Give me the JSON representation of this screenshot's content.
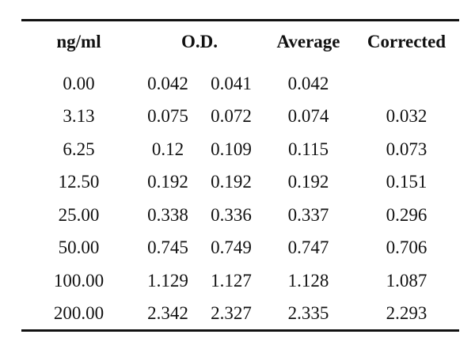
{
  "table": {
    "headers": {
      "concentration": "ng/ml",
      "od": "O.D.",
      "average": "Average",
      "corrected": "Corrected"
    },
    "rows": [
      {
        "concentration": "0.00",
        "od1": "0.042",
        "od2": "0.041",
        "average": "0.042",
        "corrected": ""
      },
      {
        "concentration": "3.13",
        "od1": "0.075",
        "od2": "0.072",
        "average": "0.074",
        "corrected": "0.032"
      },
      {
        "concentration": "6.25",
        "od1": "0.12",
        "od2": "0.109",
        "average": "0.115",
        "corrected": "0.073"
      },
      {
        "concentration": "12.50",
        "od1": "0.192",
        "od2": "0.192",
        "average": "0.192",
        "corrected": "0.151"
      },
      {
        "concentration": "25.00",
        "od1": "0.338",
        "od2": "0.336",
        "average": "0.337",
        "corrected": "0.296"
      },
      {
        "concentration": "50.00",
        "od1": "0.745",
        "od2": "0.749",
        "average": "0.747",
        "corrected": "0.706"
      },
      {
        "concentration": "100.00",
        "od1": "1.129",
        "od2": "1.127",
        "average": "1.128",
        "corrected": "1.087"
      },
      {
        "concentration": "200.00",
        "od1": "2.342",
        "od2": "2.327",
        "average": "2.335",
        "corrected": "2.293"
      }
    ]
  }
}
